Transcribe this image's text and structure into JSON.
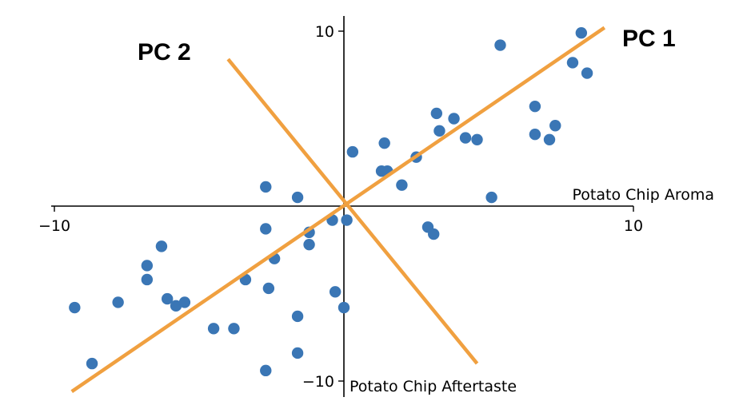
{
  "chart_data": {
    "type": "scatter",
    "xlabel": "Potato Chip Aroma",
    "ylabel": "Potato Chip Aftertaste",
    "xlim": [
      -10.5,
      10
    ],
    "ylim": [
      -10,
      10.8
    ],
    "x_ticks": [
      {
        "value": -10,
        "label": "−10"
      },
      {
        "value": 10,
        "label": "10"
      }
    ],
    "y_ticks": [
      {
        "value": 10,
        "label": "10"
      },
      {
        "value": -10,
        "label": "−10"
      }
    ],
    "grid": false,
    "colors": {
      "points": "#3a76b5",
      "pc_lines": "#f0a040",
      "axes": "#000000"
    },
    "points": [
      {
        "x": 8.2,
        "y": 9.9
      },
      {
        "x": 5.4,
        "y": 9.2
      },
      {
        "x": 7.9,
        "y": 8.2
      },
      {
        "x": 8.4,
        "y": 7.6
      },
      {
        "x": 6.6,
        "y": 5.7
      },
      {
        "x": 3.2,
        "y": 5.3
      },
      {
        "x": 3.8,
        "y": 5.0
      },
      {
        "x": 3.3,
        "y": 4.3
      },
      {
        "x": 7.3,
        "y": 4.6
      },
      {
        "x": 6.6,
        "y": 4.1
      },
      {
        "x": 7.1,
        "y": 3.8
      },
      {
        "x": 4.2,
        "y": 3.9
      },
      {
        "x": 4.6,
        "y": 3.8
      },
      {
        "x": 1.4,
        "y": 3.6
      },
      {
        "x": 0.3,
        "y": 3.1
      },
      {
        "x": 2.5,
        "y": 2.8
      },
      {
        "x": 1.3,
        "y": 2.0
      },
      {
        "x": 1.5,
        "y": 2.0
      },
      {
        "x": 2.0,
        "y": 1.2
      },
      {
        "x": 5.1,
        "y": 0.5
      },
      {
        "x": -2.7,
        "y": 1.1
      },
      {
        "x": -1.6,
        "y": 0.5
      },
      {
        "x": -0.4,
        "y": -0.8
      },
      {
        "x": 0.1,
        "y": -0.8
      },
      {
        "x": -2.7,
        "y": -1.3
      },
      {
        "x": -1.2,
        "y": -1.5
      },
      {
        "x": -1.2,
        "y": -2.2
      },
      {
        "x": -2.4,
        "y": -3.0
      },
      {
        "x": -6.3,
        "y": -2.3
      },
      {
        "x": -6.8,
        "y": -3.4
      },
      {
        "x": -6.8,
        "y": -4.2
      },
      {
        "x": -3.4,
        "y": -4.2
      },
      {
        "x": -2.6,
        "y": -4.7
      },
      {
        "x": -6.1,
        "y": -5.3
      },
      {
        "x": -5.8,
        "y": -5.7
      },
      {
        "x": -5.5,
        "y": -5.5
      },
      {
        "x": -7.8,
        "y": -5.5
      },
      {
        "x": -9.3,
        "y": -5.8
      },
      {
        "x": -0.3,
        "y": -4.9
      },
      {
        "x": 0.0,
        "y": -5.8
      },
      {
        "x": -1.6,
        "y": -6.3
      },
      {
        "x": -4.5,
        "y": -7.0
      },
      {
        "x": -3.8,
        "y": -7.0
      },
      {
        "x": -1.6,
        "y": -8.4
      },
      {
        "x": -2.7,
        "y": -9.4
      },
      {
        "x": -8.7,
        "y": -9.0
      },
      {
        "x": 2.9,
        "y": -1.2
      },
      {
        "x": 3.1,
        "y": -1.6
      }
    ],
    "pc_lines": [
      {
        "name": "PC 1",
        "from": {
          "x": -9.4,
          "y": -10.6
        },
        "to": {
          "x": 9.0,
          "y": 10.2
        }
      },
      {
        "name": "PC 2",
        "from": {
          "x": -4.0,
          "y": 8.4
        },
        "to": {
          "x": 4.6,
          "y": -9.0
        }
      }
    ]
  }
}
